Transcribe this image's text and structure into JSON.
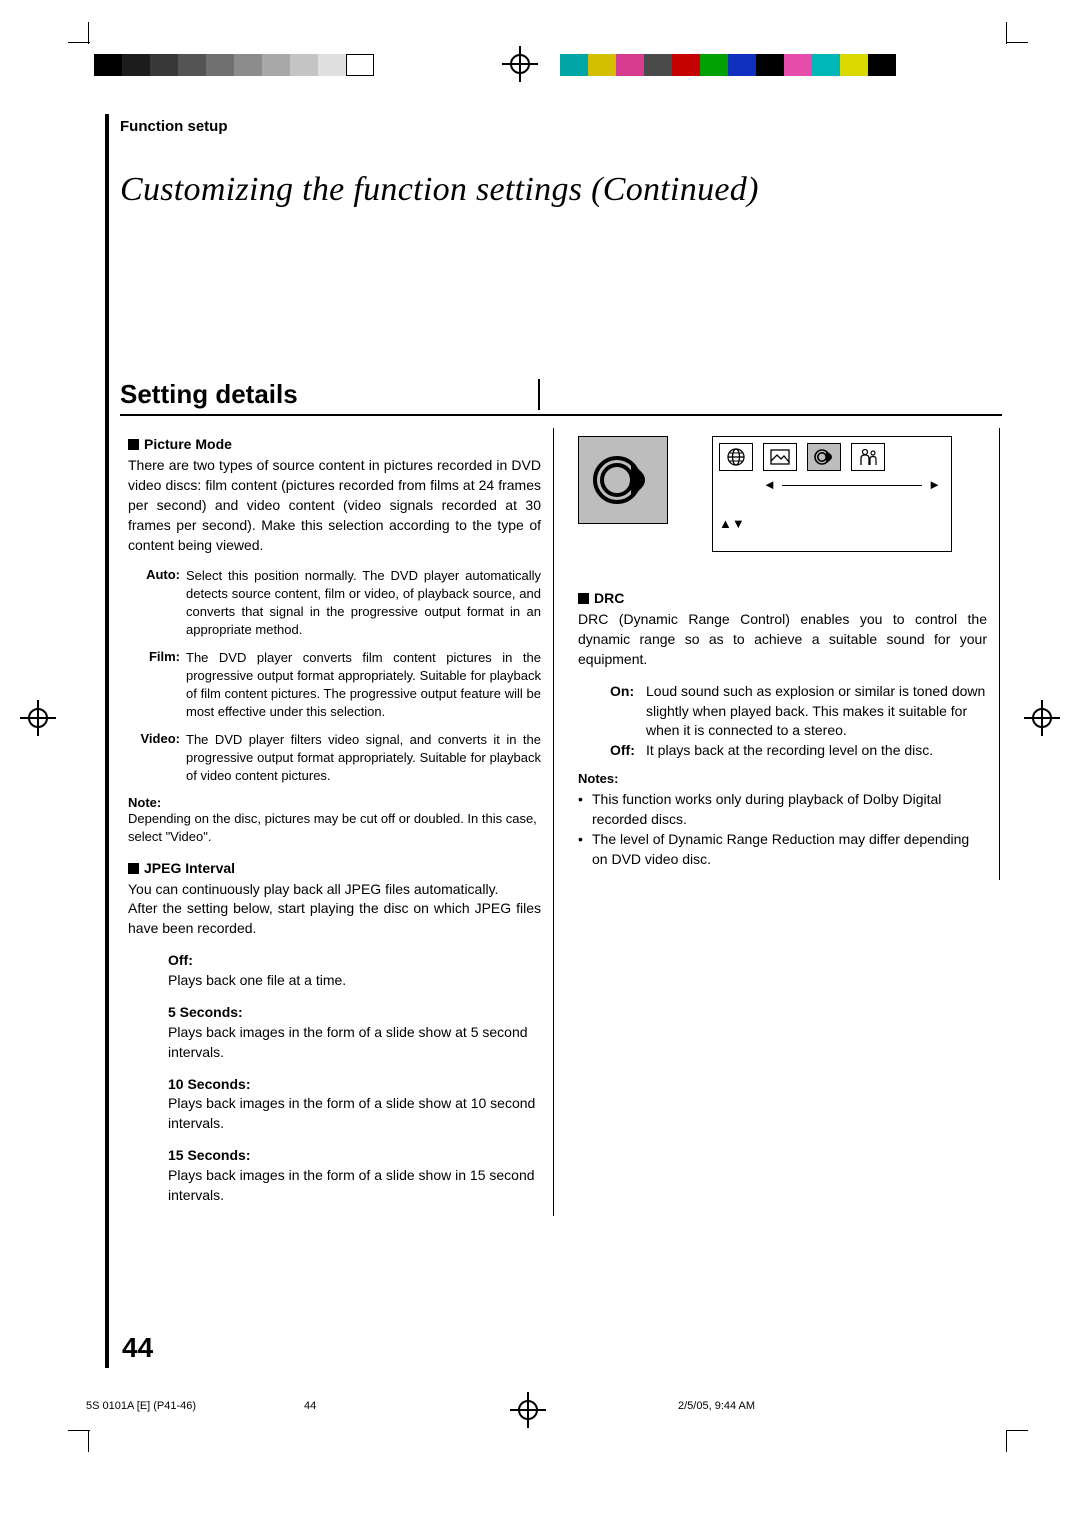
{
  "marks": {
    "gray_strip_colors": [
      "#000000",
      "#1d1d1d",
      "#383838",
      "#545454",
      "#707070",
      "#8c8c8c",
      "#a8a8a8",
      "#c4c4c4",
      "#dfdfdf",
      "#ffffff"
    ],
    "color_strip_colors": [
      "#00a6a6",
      "#d4bf00",
      "#d63b8e",
      "#4a4a4a",
      "#c40000",
      "#00a000",
      "#1030c0",
      "#000000",
      "#e64caa",
      "#00b7b7",
      "#d9d900",
      "#000000"
    ]
  },
  "header": {
    "section": "Function setup",
    "title": "Customizing the function settings (Continued)",
    "subhead": "Setting details"
  },
  "left": {
    "h1": "Picture Mode",
    "p1": "There are two types of source content in pictures recorded in DVD video discs: film content (pictures recorded from films at 24 frames per second) and video content (video signals recorded at 30 frames per second). Make this selection according to the type of content being viewed.",
    "opts": [
      {
        "k": "Auto:",
        "v": "Select this position normally.\nThe DVD player automatically detects source content, film or video, of playback source, and converts that signal in the progressive output format in an appropriate method."
      },
      {
        "k": "Film:",
        "v": "The DVD player converts film content pictures in the progressive output format appropriately. Suitable for playback of film content pictures. The progressive output feature will be most effective under this selection."
      },
      {
        "k": "Video:",
        "v": "The DVD player filters video signal, and converts it in the progressive output format appropriately.\nSuitable for playback of video content pictures."
      }
    ],
    "note_label": "Note:",
    "note_body": "Depending on the disc, pictures may be cut off or doubled. In this case, select \"Video\".",
    "h2": "JPEG Interval",
    "p2a": "You can continuously play back all JPEG files automatically.",
    "p2b": "After the setting below, start playing the disc on which JPEG files have been recorded.",
    "jpeg": [
      {
        "k": "Off:",
        "v": "Plays back one file at a time."
      },
      {
        "k": "5 Seconds:",
        "v": "Plays back images in the form of a slide show at 5 second intervals."
      },
      {
        "k": "10 Seconds:",
        "v": "Plays back images in the form of a slide show at 10 second intervals."
      },
      {
        "k": "15 Seconds:",
        "v": "Plays back images in the form of a slide show in 15 second intervals."
      }
    ]
  },
  "right": {
    "icons": {
      "arrow_left": "◄",
      "arrow_right": "►",
      "updown": "▲▼"
    },
    "h1": "DRC",
    "p1": "DRC (Dynamic Range Control) enables you to control the dynamic range so as to achieve a suitable sound for your equipment.",
    "opts": [
      {
        "k": "On:",
        "v": "Loud sound such as explosion or similar is toned down slightly when played back. This makes it suitable for when it is connected to a stereo."
      },
      {
        "k": "Off:",
        "v": "It plays back at the recording level on the disc."
      }
    ],
    "notes_label": "Notes:",
    "notes": [
      "This function works only during playback of Dolby Digital recorded discs.",
      "The level of Dynamic Range Reduction may differ depending on DVD video disc."
    ]
  },
  "footer": {
    "page": "44",
    "doc_id": "5S 0101A [E] (P41-46)",
    "mid": "44",
    "date": "2/5/05, 9:44 AM"
  }
}
